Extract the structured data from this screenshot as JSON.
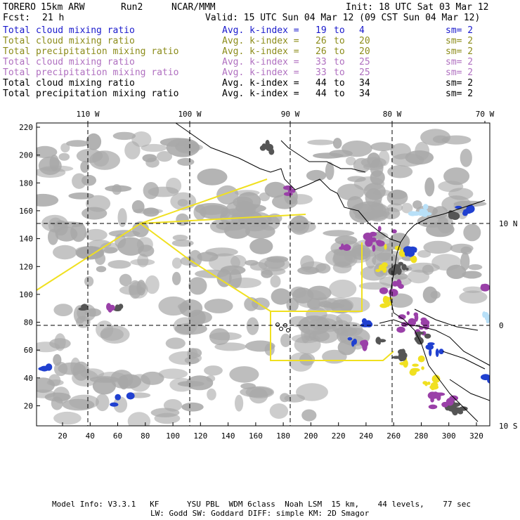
{
  "header": {
    "model": "TORERO",
    "resolution": "15km ARW",
    "run": "Run2",
    "org": "NCAR/MMM",
    "init": "Init: 18 UTC Sat 03 Mar 12",
    "fcst_label": "Fcst:",
    "fcst_value": "21 h",
    "valid": "Valid: 15 UTC Sun 04 Mar 12 (09 CST Sun 04 Mar 12)"
  },
  "legend": [
    {
      "name": "Total cloud mixing ratio",
      "kindex": "Avg. k-index =",
      "k1": "19",
      "to": "to",
      "k2": "4",
      "sm": "sm= 2",
      "color": "#1a1acc"
    },
    {
      "name": "Total cloud mixing ratio",
      "kindex": "Avg. k-index =",
      "k1": "26",
      "to": "to",
      "k2": "20",
      "sm": "sm= 2",
      "color": "#8c8c1a"
    },
    {
      "name": "Total precipitation mixing ratio",
      "kindex": "Avg. k-index =",
      "k1": "26",
      "to": "to",
      "k2": "20",
      "sm": "sm= 2",
      "color": "#8c8c1a"
    },
    {
      "name": "Total cloud mixing ratio",
      "kindex": "Avg. k-index =",
      "k1": "33",
      "to": "to",
      "k2": "25",
      "sm": "sm= 2",
      "color": "#b070c0"
    },
    {
      "name": "Total precipitation mixing ratio",
      "kindex": "Avg. k-index =",
      "k1": "33",
      "to": "to",
      "k2": "25",
      "sm": "sm= 2",
      "color": "#b070c0"
    },
    {
      "name": "Total cloud mixing ratio",
      "kindex": "Avg. k-index =",
      "k1": "44",
      "to": "to",
      "k2": "34",
      "sm": "sm= 2",
      "color": "#000000"
    },
    {
      "name": "Total precipitation mixing ratio",
      "kindex": "Avg. k-index =",
      "k1": "44",
      "to": "to",
      "k2": "34",
      "sm": "sm= 2",
      "color": "#000000"
    }
  ],
  "map": {
    "lon_labels": [
      "110 W",
      "100 W",
      "90 W",
      "80 W",
      "70 W"
    ],
    "lat_labels": [
      "10 N",
      "0",
      "10 S"
    ],
    "y_ticks": [
      "220",
      "200",
      "180",
      "160",
      "140",
      "120",
      "100",
      "80",
      "60",
      "40",
      "20"
    ],
    "x_ticks": [
      "20",
      "40",
      "60",
      "80",
      "100",
      "120",
      "140",
      "160",
      "180",
      "200",
      "220",
      "240",
      "260",
      "280",
      "300",
      "320"
    ],
    "colors": {
      "gray": "#a8a8a8",
      "dark": "#555555",
      "yellow": "#f0e020",
      "purple": "#9a40a8",
      "blue": "#2040d0",
      "lightblue": "#b8e0f8",
      "boundary": "#f0e020"
    }
  },
  "footer": {
    "line1": "Model Info: V3.3.1   KF      YSU PBL  WDM 6class  Noah LSM  15 km,    44 levels,    77 sec",
    "line2": "LW: Godd SW: Goddard DIFF: simple KM: 2D Smagor"
  }
}
